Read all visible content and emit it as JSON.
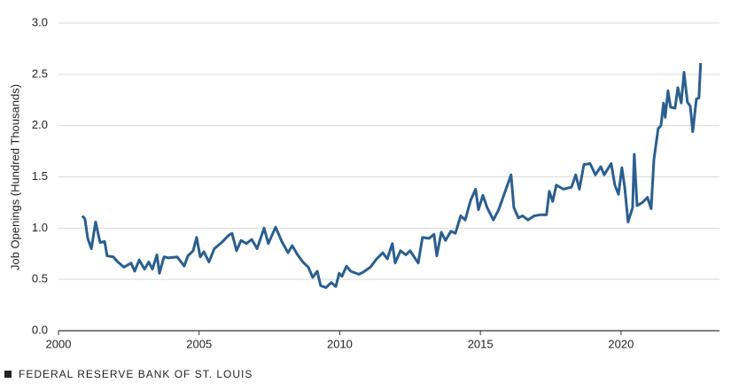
{
  "chart_data": {
    "type": "line",
    "y_label": "Job Openings (Hundred Thousands)",
    "source": "FEDERAL RESERVE BANK OF ST. LOUIS",
    "xlim": [
      2000,
      2023.5
    ],
    "xticks": [
      2000,
      2005,
      2010,
      2015,
      2020
    ],
    "ylim": [
      0,
      3
    ],
    "yticks": [
      {
        "value": 0,
        "label": "0.0"
      },
      0.5,
      {
        "value": 1,
        "label": "1.0"
      },
      1.5,
      {
        "value": 2,
        "label": "2.0"
      },
      2.5,
      {
        "value": 3,
        "label": "3.0"
      }
    ],
    "grid": true,
    "series": [
      {
        "name": "Job Openings",
        "color": "#2b5f8e",
        "x": [
          2000.85,
          2000.94,
          2001.04,
          2001.17,
          2001.32,
          2001.48,
          2001.64,
          2001.73,
          2001.95,
          2002.11,
          2002.33,
          2002.58,
          2002.71,
          2002.87,
          2003.06,
          2003.21,
          2003.34,
          2003.5,
          2003.59,
          2003.75,
          2003.91,
          2004.22,
          2004.47,
          2004.6,
          2004.79,
          2004.91,
          2005.04,
          2005.17,
          2005.35,
          2005.54,
          2005.8,
          2006.05,
          2006.17,
          2006.33,
          2006.49,
          2006.68,
          2006.87,
          2007.06,
          2007.31,
          2007.46,
          2007.72,
          2007.94,
          2008.16,
          2008.31,
          2008.5,
          2008.69,
          2008.88,
          2009.04,
          2009.2,
          2009.32,
          2009.51,
          2009.7,
          2009.86,
          2009.98,
          2010.08,
          2010.24,
          2010.39,
          2010.68,
          2010.83,
          2011.09,
          2011.31,
          2011.53,
          2011.69,
          2011.87,
          2011.97,
          2012.16,
          2012.35,
          2012.5,
          2012.79,
          2012.94,
          2013.17,
          2013.35,
          2013.45,
          2013.61,
          2013.76,
          2013.95,
          2014.11,
          2014.3,
          2014.46,
          2014.65,
          2014.83,
          2014.93,
          2015.09,
          2015.24,
          2015.46,
          2015.65,
          2015.87,
          2016.09,
          2016.19,
          2016.35,
          2016.5,
          2016.69,
          2016.91,
          2017.13,
          2017.35,
          2017.45,
          2017.57,
          2017.7,
          2017.95,
          2018.24,
          2018.39,
          2018.52,
          2018.68,
          2018.9,
          2019.09,
          2019.28,
          2019.4,
          2019.65,
          2019.78,
          2019.91,
          2020.03,
          2020.13,
          2020.25,
          2020.41,
          2020.47,
          2020.57,
          2020.76,
          2020.94,
          2021.07,
          2021.17,
          2021.32,
          2021.42,
          2021.51,
          2021.57,
          2021.67,
          2021.76,
          2021.92,
          2022.02,
          2022.14,
          2022.24,
          2022.36,
          2022.46,
          2022.55,
          2022.68,
          2022.77,
          2022.83
        ],
        "values": [
          1.12,
          1.09,
          0.9,
          0.8,
          1.06,
          0.86,
          0.87,
          0.73,
          0.72,
          0.67,
          0.62,
          0.66,
          0.58,
          0.69,
          0.6,
          0.67,
          0.6,
          0.74,
          0.56,
          0.72,
          0.71,
          0.72,
          0.63,
          0.73,
          0.78,
          0.91,
          0.72,
          0.77,
          0.67,
          0.8,
          0.86,
          0.93,
          0.95,
          0.78,
          0.88,
          0.85,
          0.89,
          0.8,
          1.0,
          0.85,
          1.01,
          0.87,
          0.76,
          0.83,
          0.74,
          0.67,
          0.62,
          0.52,
          0.58,
          0.44,
          0.42,
          0.47,
          0.43,
          0.56,
          0.53,
          0.63,
          0.58,
          0.55,
          0.57,
          0.62,
          0.7,
          0.76,
          0.7,
          0.85,
          0.66,
          0.78,
          0.74,
          0.78,
          0.66,
          0.91,
          0.9,
          0.94,
          0.73,
          0.96,
          0.88,
          0.97,
          0.95,
          1.12,
          1.08,
          1.27,
          1.38,
          1.18,
          1.32,
          1.2,
          1.08,
          1.18,
          1.35,
          1.52,
          1.2,
          1.1,
          1.12,
          1.08,
          1.12,
          1.13,
          1.13,
          1.36,
          1.26,
          1.42,
          1.38,
          1.4,
          1.52,
          1.38,
          1.62,
          1.63,
          1.52,
          1.6,
          1.52,
          1.63,
          1.42,
          1.33,
          1.59,
          1.4,
          1.06,
          1.2,
          1.72,
          1.22,
          1.25,
          1.3,
          1.19,
          1.67,
          1.97,
          2.0,
          2.22,
          2.08,
          2.34,
          2.18,
          2.17,
          2.37,
          2.22,
          2.52,
          2.23,
          2.19,
          1.94,
          2.26,
          2.27,
          2.61
        ]
      }
    ]
  }
}
